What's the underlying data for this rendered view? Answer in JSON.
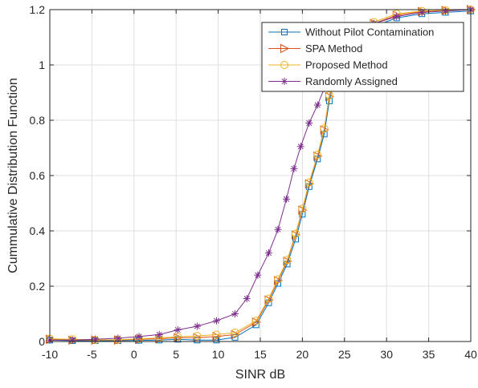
{
  "chart_data": {
    "type": "line",
    "title": "",
    "xlabel": "SINR dB",
    "ylabel": "Cummulative Distribution Function",
    "xlim": [
      -10,
      40
    ],
    "ylim": [
      0,
      1.2
    ],
    "xticks": [
      -10,
      -5,
      0,
      5,
      10,
      15,
      20,
      25,
      30,
      35,
      40
    ],
    "yticks": [
      0,
      0.2,
      0.4,
      0.6,
      0.8,
      1,
      1.2
    ],
    "xtick_labels": [
      "-10",
      "-5",
      "0",
      "5",
      "10",
      "15",
      "20",
      "25",
      "30",
      "35",
      "40"
    ],
    "ytick_labels": [
      "0",
      "0.2",
      "0.4",
      "0.6",
      "0.8",
      "1",
      "1.2"
    ],
    "grid": true,
    "legend_position": "top-right",
    "series": [
      {
        "name": "Without Pilot Contamination",
        "color": "#0072BD",
        "marker": "square",
        "x": [
          -10,
          -7.3,
          -4.6,
          -1.9,
          0.6,
          3,
          5.2,
          7.5,
          9.8,
          12,
          14.5,
          16,
          17.1,
          18.2,
          19.2,
          20,
          20.8,
          21.8,
          22.6,
          23.2,
          24,
          26,
          28.5,
          31.2,
          34.2,
          37,
          40
        ],
        "y": [
          0.005,
          0.003,
          0.003,
          0.003,
          0.004,
          0.005,
          0.008,
          0.005,
          0.005,
          0.015,
          0.06,
          0.14,
          0.21,
          0.28,
          0.37,
          0.46,
          0.56,
          0.66,
          0.75,
          0.87,
          0.97,
          1.08,
          1.14,
          1.17,
          1.185,
          1.19,
          1.195
        ]
      },
      {
        "name": "SPA Method",
        "color": "#D95319",
        "marker": "triangle-right",
        "x": [
          -10,
          -7.3,
          -4.6,
          -1.9,
          0.6,
          3,
          5.2,
          7.5,
          9.8,
          12,
          14.5,
          16,
          17.1,
          18.2,
          19.2,
          20,
          20.8,
          21.8,
          22.6,
          23.2,
          24,
          26,
          28.5,
          31.2,
          34.2,
          37,
          40
        ],
        "y": [
          0.008,
          0.005,
          0.005,
          0.005,
          0.008,
          0.01,
          0.014,
          0.014,
          0.018,
          0.025,
          0.07,
          0.15,
          0.22,
          0.29,
          0.385,
          0.475,
          0.57,
          0.67,
          0.765,
          0.885,
          0.98,
          1.09,
          1.15,
          1.18,
          1.193,
          1.197,
          1.2
        ]
      },
      {
        "name": "Proposed Method",
        "color": "#EDB120",
        "marker": "circle",
        "x": [
          -10,
          -7.3,
          -4.6,
          -1.9,
          0.6,
          3,
          5.2,
          7.5,
          9.8,
          12,
          14.5,
          16,
          17.1,
          18.2,
          19.2,
          20,
          20.8,
          21.8,
          22.6,
          23.2,
          24,
          26,
          28.5,
          31.2,
          34.2,
          37,
          40
        ],
        "y": [
          0.01,
          0.008,
          0.006,
          0.006,
          0.01,
          0.013,
          0.017,
          0.02,
          0.025,
          0.032,
          0.075,
          0.155,
          0.225,
          0.295,
          0.39,
          0.48,
          0.575,
          0.675,
          0.77,
          0.89,
          0.985,
          1.095,
          1.155,
          1.185,
          1.195,
          1.198,
          1.2
        ]
      },
      {
        "name": "Randomly Assigned",
        "color": "#7E2F8E",
        "marker": "asterisk",
        "x": [
          -10,
          -7.3,
          -4.6,
          -1.9,
          0.6,
          3,
          5.2,
          7.5,
          9.8,
          12,
          13.4,
          14.7,
          16,
          17.1,
          18.1,
          19,
          19.8,
          20.8,
          21.8,
          22.6,
          23.4,
          24.5,
          26,
          28.5,
          31.2,
          34.2,
          37,
          40
        ],
        "y": [
          0.005,
          0.005,
          0.008,
          0.012,
          0.018,
          0.025,
          0.042,
          0.055,
          0.075,
          0.1,
          0.155,
          0.24,
          0.32,
          0.405,
          0.515,
          0.625,
          0.705,
          0.79,
          0.855,
          0.915,
          0.965,
          1.04,
          1.1,
          1.15,
          1.175,
          1.19,
          1.195,
          1.2
        ]
      }
    ]
  }
}
